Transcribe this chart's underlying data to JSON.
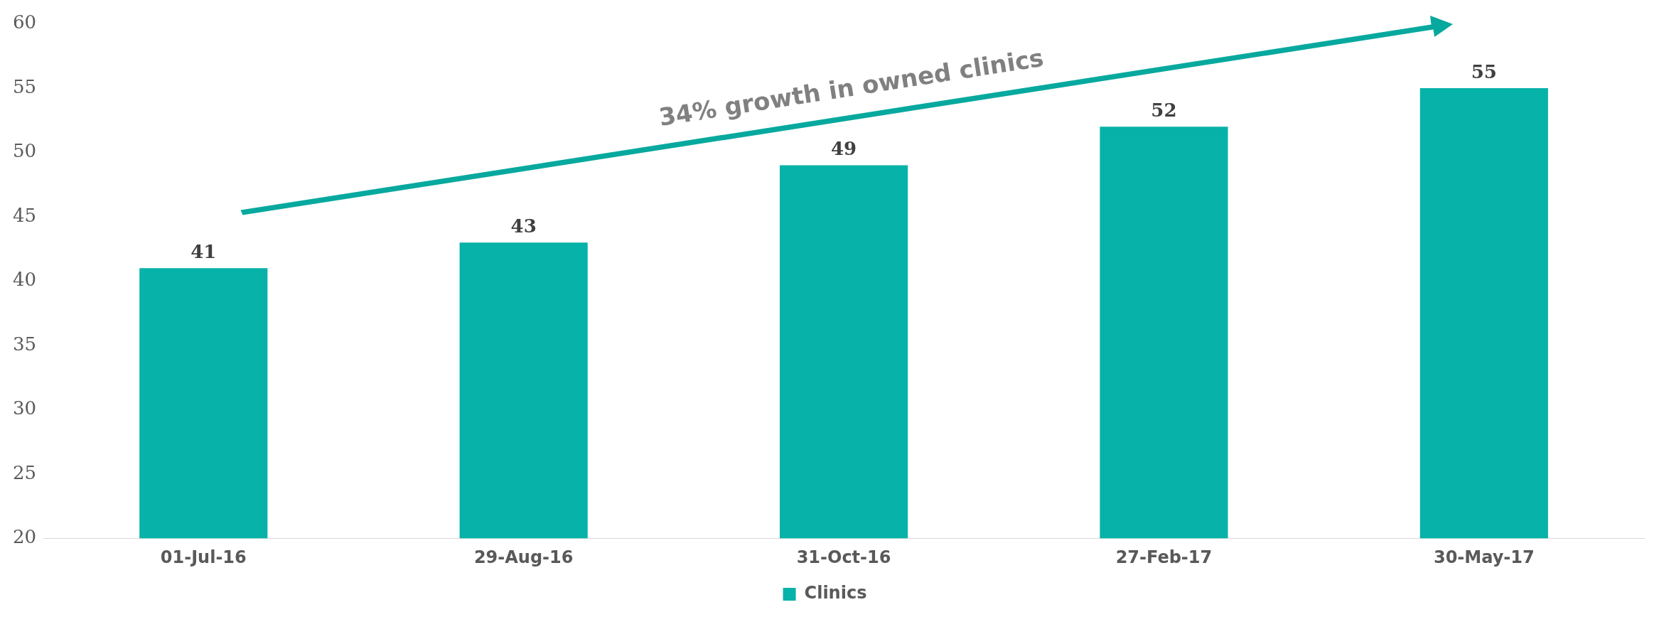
{
  "chart_data": {
    "type": "bar",
    "categories": [
      "01-Jul-16",
      "29-Aug-16",
      "31-Oct-16",
      "27-Feb-17",
      "30-May-17"
    ],
    "series": [
      {
        "name": "Clinics",
        "color": "#07b2a8",
        "values": [
          41,
          43,
          49,
          52,
          55
        ]
      }
    ],
    "ylim": [
      20,
      60
    ],
    "yticks": [
      20,
      25,
      30,
      35,
      40,
      45,
      50,
      55,
      60
    ],
    "grid": false,
    "legend": "bottom",
    "data_labels": true,
    "annotations": [
      "34% growth in owned clinics"
    ]
  }
}
